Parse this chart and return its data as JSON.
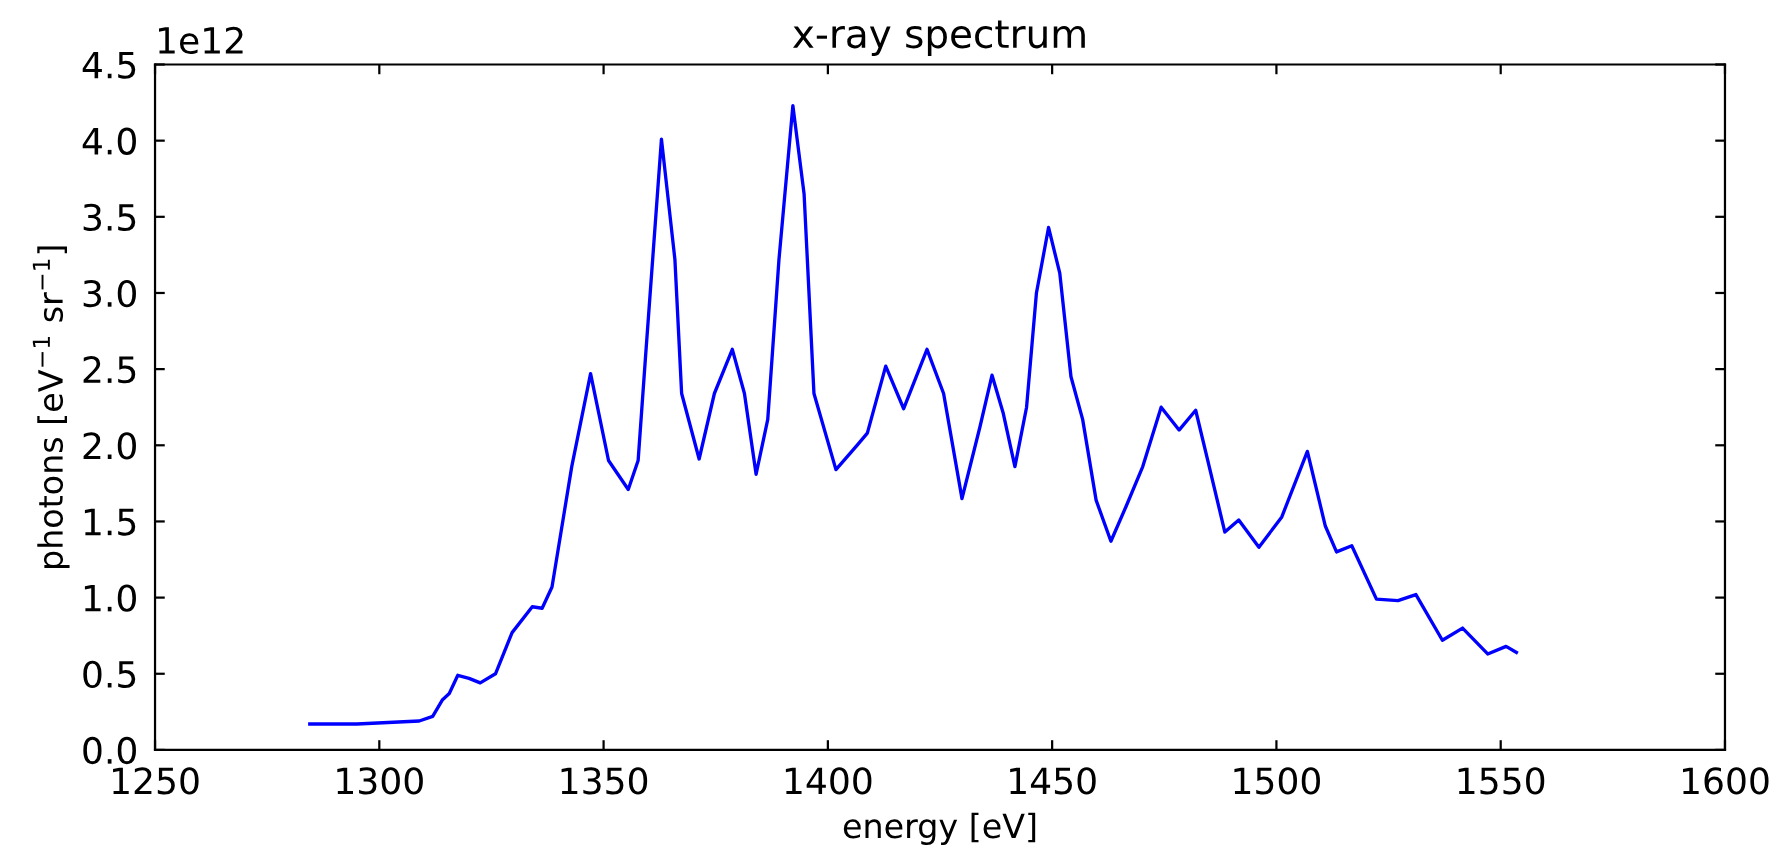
{
  "chart_data": {
    "type": "line",
    "title": "x-ray spectrum",
    "xlabel": "energy [eV]",
    "ylabel": "photons [eV$^{−1}$ sr$^{−1}$]",
    "annotations": [
      "1e12"
    ],
    "xlim": [
      1250,
      1600
    ],
    "xticks": [
      1250,
      1300,
      1350,
      1400,
      1450,
      1500,
      1550,
      1600
    ],
    "ylim": [
      0,
      4.5
    ],
    "yticks": [
      {
        "value": 0,
        "label": "0.0"
      },
      0.5,
      {
        "value": 1,
        "label": "1.0"
      },
      1.5,
      {
        "value": 2,
        "label": "2.0"
      },
      2.5,
      {
        "value": 3,
        "label": "3.0"
      },
      3.5,
      {
        "value": 4,
        "label": "4.0"
      },
      4.5
    ],
    "grid": false,
    "legend": false,
    "marker": "none",
    "line_style": "solid",
    "series": [
      {
        "color": "#0000ff",
        "x": [
          1284.5,
          1295,
          1308.9,
          1311.9,
          1314.1,
          1315.6,
          1317.5,
          1320,
          1322.5,
          1325.9,
          1329.6,
          1334.1,
          1336.3,
          1338.5,
          1342.9,
          1347.1,
          1351.1,
          1355.5,
          1357.7,
          1359.3,
          1362.9,
          1365.9,
          1367.4,
          1371.3,
          1374.7,
          1378.7,
          1381.4,
          1384.0,
          1386.6,
          1389.1,
          1392.2,
          1394.7,
          1396.9,
          1401.8,
          1406.5,
          1408.8,
          1412.9,
          1416.9,
          1422.1,
          1425.8,
          1429.9,
          1433.9,
          1436.6,
          1439.1,
          1441.7,
          1444.3,
          1446.5,
          1449.2,
          1451.7,
          1454.2,
          1456.8,
          1459.8,
          1463.1,
          1466.5,
          1470.2,
          1474.3,
          1478.3,
          1482.0,
          1484.7,
          1488.5,
          1491.6,
          1496.1,
          1501.2,
          1506.9,
          1510.9,
          1513.4,
          1516.8,
          1522.3,
          1527.1,
          1531.1,
          1537.0,
          1541.5,
          1547.1,
          1551.2,
          1553.5
        ],
        "values": [
          0.17,
          0.17,
          0.19,
          0.22,
          0.33,
          0.37,
          0.49,
          0.47,
          0.44,
          0.5,
          0.77,
          0.94,
          0.93,
          1.07,
          1.86,
          2.47,
          1.9,
          1.71,
          1.9,
          2.56,
          4.01,
          3.22,
          2.34,
          1.91,
          2.34,
          2.63,
          2.34,
          1.81,
          2.17,
          3.22,
          4.23,
          3.65,
          2.34,
          1.84,
          2.0,
          2.08,
          2.52,
          2.24,
          2.63,
          2.34,
          1.65,
          2.12,
          2.46,
          2.21,
          1.86,
          2.25,
          3.0,
          3.43,
          3.13,
          2.45,
          2.17,
          1.64,
          1.37,
          1.6,
          1.86,
          2.25,
          2.1,
          2.23,
          1.9,
          1.43,
          1.51,
          1.33,
          1.53,
          1.96,
          1.47,
          1.3,
          1.34,
          0.99,
          0.98,
          1.02,
          0.72,
          0.8,
          0.63,
          0.68,
          0.64
        ]
      }
    ]
  }
}
